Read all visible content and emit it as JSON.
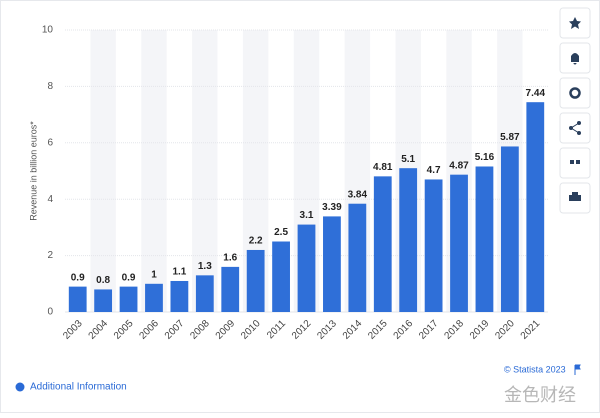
{
  "chart_data": {
    "type": "bar",
    "y_label": "Revenue in billion euros*",
    "categories": [
      "2003",
      "2004",
      "2005",
      "2006",
      "2007",
      "2008",
      "2009",
      "2010",
      "2011",
      "2012",
      "2013",
      "2014",
      "2015",
      "2016",
      "2017",
      "2018",
      "2019",
      "2020",
      "2021"
    ],
    "values": [
      0.9,
      0.8,
      0.9,
      1,
      1.1,
      1.3,
      1.6,
      2.2,
      2.5,
      3.1,
      3.39,
      3.84,
      4.81,
      5.1,
      4.7,
      4.87,
      5.16,
      5.87,
      7.44
    ],
    "color": "#2f6fd8",
    "ylim": [
      0,
      10
    ],
    "yticks": [
      0,
      2,
      4,
      6,
      8,
      10
    ],
    "grid": true,
    "source": "© Statista 2023",
    "footer": "Additional Information",
    "watermark": "金色财经"
  }
}
